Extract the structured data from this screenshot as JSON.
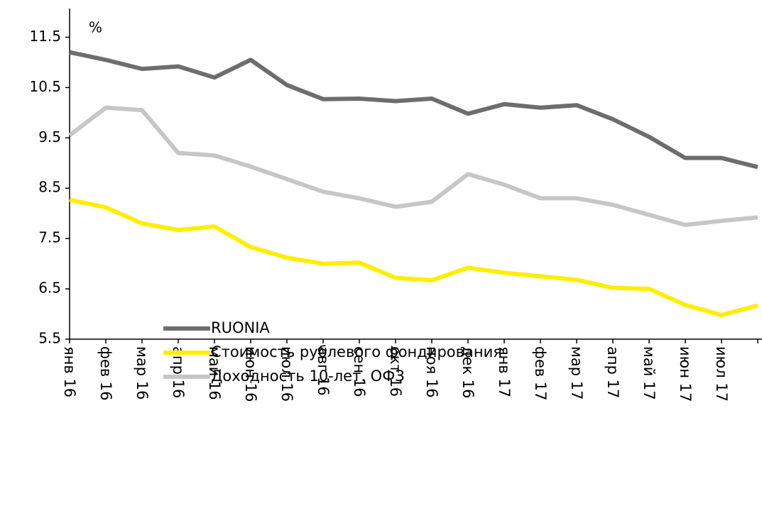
{
  "chart_data": {
    "type": "line",
    "annotation": "%",
    "categories": [
      "янв 16",
      "фев 16",
      "мар 16",
      "апр 16",
      "май 16",
      "июн 16",
      "июл 16",
      "авг 16",
      "сен 16",
      "окт 16",
      "ноя 16",
      "дек 16",
      "янв 17",
      "фев 17",
      "мар 17",
      "апр 17",
      "май 17",
      "июн 17",
      "июл 17",
      null
    ],
    "series": [
      {
        "name": "RUONIA",
        "color": "#6d6d6d",
        "values": [
          11.2,
          11.05,
          10.87,
          10.92,
          10.7,
          11.05,
          10.55,
          10.27,
          10.28,
          10.23,
          10.28,
          9.98,
          10.17,
          10.1,
          10.15,
          9.87,
          9.52,
          9.1,
          9.1,
          8.92
        ]
      },
      {
        "name": "Стоимость рублевого фондирования",
        "color": "#ffee00",
        "values": [
          8.27,
          8.12,
          7.8,
          7.67,
          7.74,
          7.33,
          7.12,
          7.0,
          7.02,
          6.72,
          6.67,
          6.92,
          6.82,
          6.75,
          6.68,
          6.52,
          6.5,
          6.18,
          5.98,
          6.17
        ]
      },
      {
        "name": "Доходность 10-лет. ОФЗ",
        "color": "#c6c6c6",
        "values": [
          9.55,
          10.1,
          10.05,
          9.2,
          9.15,
          8.93,
          8.68,
          8.43,
          8.3,
          8.13,
          8.23,
          8.78,
          8.57,
          8.3,
          8.3,
          8.17,
          7.97,
          7.77,
          7.85,
          7.92
        ]
      }
    ],
    "ylim": [
      5.5,
      12
    ],
    "yticks": [
      5.5,
      6.5,
      7.5,
      8.5,
      9.5,
      10.5,
      11.5
    ],
    "grid": false
  }
}
